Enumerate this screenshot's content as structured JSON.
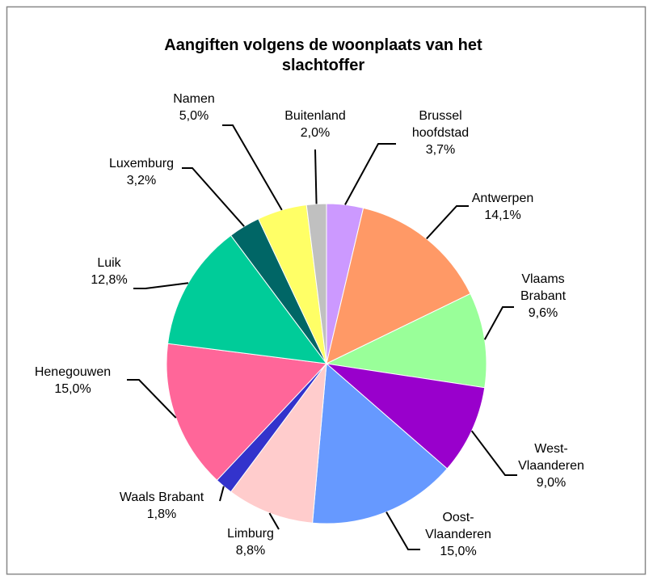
{
  "chart_data": {
    "type": "pie",
    "title": "Aangiften volgens de woonplaats van het slachtoffer",
    "categories": [
      "Brussel hoofdstad",
      "Antwerpen",
      "Vlaams Brabant",
      "West-Vlaanderen",
      "Oost-Vlaanderen",
      "Limburg",
      "Waals Brabant",
      "Henegouwen",
      "Luik",
      "Luxemburg",
      "Namen",
      "Buitenland"
    ],
    "values": [
      3.7,
      14.1,
      9.6,
      9.0,
      15.0,
      8.8,
      1.8,
      15.0,
      12.8,
      3.2,
      5.0,
      2.0
    ],
    "value_labels": [
      "3,7%",
      "14,1%",
      "9,6%",
      "9,0%",
      "15,0%",
      "8,8%",
      "1,8%",
      "15,0%",
      "12,8%",
      "3,2%",
      "5,0%",
      "2,0%"
    ],
    "colors": [
      "#cc99ff",
      "#ff9966",
      "#99ff99",
      "#9900cc",
      "#6699ff",
      "#ffcccc",
      "#3333cc",
      "#ff6699",
      "#00cc99",
      "#006666",
      "#ffff66",
      "#c0c0c0"
    ]
  }
}
